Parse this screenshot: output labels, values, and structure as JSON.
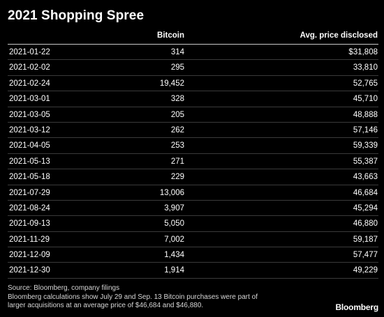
{
  "title": "2021 Shopping Spree",
  "chart_data": {
    "type": "table",
    "title": "2021 Shopping Spree",
    "columns": [
      "",
      "Bitcoin",
      "Avg. price disclosed"
    ],
    "rows": [
      {
        "date": "2021-01-22",
        "bitcoin": "314",
        "price": "$31,808"
      },
      {
        "date": "2021-02-02",
        "bitcoin": "295",
        "price": "33,810"
      },
      {
        "date": "2021-02-24",
        "bitcoin": "19,452",
        "price": "52,765"
      },
      {
        "date": "2021-03-01",
        "bitcoin": "328",
        "price": "45,710"
      },
      {
        "date": "2021-03-05",
        "bitcoin": "205",
        "price": "48,888"
      },
      {
        "date": "2021-03-12",
        "bitcoin": "262",
        "price": "57,146"
      },
      {
        "date": "2021-04-05",
        "bitcoin": "253",
        "price": "59,339"
      },
      {
        "date": "2021-05-13",
        "bitcoin": "271",
        "price": "55,387"
      },
      {
        "date": "2021-05-18",
        "bitcoin": "229",
        "price": "43,663"
      },
      {
        "date": "2021-07-29",
        "bitcoin": "13,006",
        "price": "46,684"
      },
      {
        "date": "2021-08-24",
        "bitcoin": "3,907",
        "price": "45,294"
      },
      {
        "date": "2021-09-13",
        "bitcoin": "5,050",
        "price": "46,880"
      },
      {
        "date": "2021-11-29",
        "bitcoin": "7,002",
        "price": "59,187"
      },
      {
        "date": "2021-12-09",
        "bitcoin": "1,434",
        "price": "57,477"
      },
      {
        "date": "2021-12-30",
        "bitcoin": "1,914",
        "price": "49,229"
      }
    ]
  },
  "footer": {
    "source": "Source: Bloomberg, company filings",
    "note_line1": "Bloomberg calculations show July 29 and Sep. 13 Bitcoin purchases were part of",
    "note_line2": "larger acquisitions at an average price of $46,684 and $46,880."
  },
  "brand": "Bloomberg",
  "colors": {
    "background": "#000000",
    "text": "#ffffff",
    "footer_text": "#d6d6d6",
    "row_rule": "#3a3a3a"
  }
}
